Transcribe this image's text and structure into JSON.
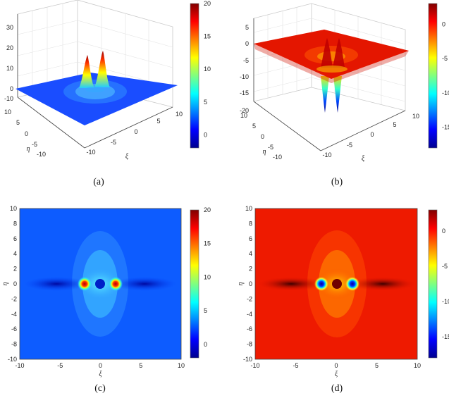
{
  "chart_data": [
    {
      "id": "a",
      "type": "surface",
      "caption": "(a)",
      "xlabel": "ξ",
      "ylabel": "η",
      "x_ticks": [
        "-10",
        "-5",
        "0",
        "5",
        "10"
      ],
      "y_ticks": [
        "-10",
        "-5",
        "0",
        "5",
        "10"
      ],
      "z_ticks": [
        "-10",
        "0",
        "10",
        "20",
        "30"
      ],
      "zlim": [
        -10,
        30
      ],
      "colorbar_ticks": [
        "0",
        "5",
        "10",
        "15",
        "20"
      ],
      "colorbar_range": [
        -2,
        20
      ],
      "colormap": "jet",
      "peaks": [
        {
          "xi": -1.8,
          "eta": 0,
          "z": 20
        },
        {
          "xi": 1.8,
          "eta": 0,
          "z": 20
        }
      ],
      "grid": true
    },
    {
      "id": "b",
      "type": "surface",
      "caption": "(b)",
      "xlabel": "ξ",
      "ylabel": "η",
      "x_ticks": [
        "-10",
        "-5",
        "0",
        "5",
        "10"
      ],
      "y_ticks": [
        "-10",
        "-5",
        "0",
        "5",
        "10"
      ],
      "z_ticks": [
        "-20",
        "-15",
        "-10",
        "-5",
        "0",
        "5"
      ],
      "zlim": [
        -20,
        5
      ],
      "colorbar_ticks": [
        "0",
        "-5",
        "-10",
        "-15"
      ],
      "colorbar_range": [
        -18,
        3
      ],
      "colormap": "jet",
      "peaks": [
        {
          "xi": -1.8,
          "eta": 0,
          "z": -18
        },
        {
          "xi": 1.8,
          "eta": 0,
          "z": -18
        }
      ],
      "grid": true
    },
    {
      "id": "c",
      "type": "heatmap",
      "caption": "(c)",
      "xlabel": "ξ",
      "ylabel": "η",
      "x_ticks": [
        "-10",
        "-5",
        "0",
        "5",
        "10"
      ],
      "y_ticks": [
        "10",
        "8",
        "6",
        "4",
        "2",
        "0",
        "-2",
        "-4",
        "-6",
        "-8",
        "-10"
      ],
      "xlim": [
        -10,
        10
      ],
      "ylim": [
        -10,
        10
      ],
      "colorbar_ticks": [
        "20",
        "15",
        "10",
        "5",
        "0"
      ],
      "colorbar_range": [
        -2,
        20
      ],
      "colormap": "jet",
      "peaks": [
        {
          "xi": -1.8,
          "eta": 0,
          "value": 20
        },
        {
          "xi": 1.8,
          "eta": 0,
          "value": 20
        }
      ]
    },
    {
      "id": "d",
      "type": "heatmap",
      "caption": "(d)",
      "xlabel": "ξ",
      "ylabel": "η",
      "x_ticks": [
        "-10",
        "-5",
        "0",
        "5",
        "10"
      ],
      "y_ticks": [
        "10",
        "8",
        "6",
        "4",
        "2",
        "0",
        "-2",
        "-4",
        "-6",
        "-8",
        "-10"
      ],
      "xlim": [
        -10,
        10
      ],
      "ylim": [
        -10,
        10
      ],
      "colorbar_ticks": [
        "0",
        "-5",
        "-10",
        "-15"
      ],
      "colorbar_range": [
        -18,
        3
      ],
      "colormap": "jet",
      "peaks": [
        {
          "xi": -1.8,
          "eta": 0,
          "value": -18
        },
        {
          "xi": 1.8,
          "eta": 0,
          "value": -18
        }
      ]
    }
  ]
}
